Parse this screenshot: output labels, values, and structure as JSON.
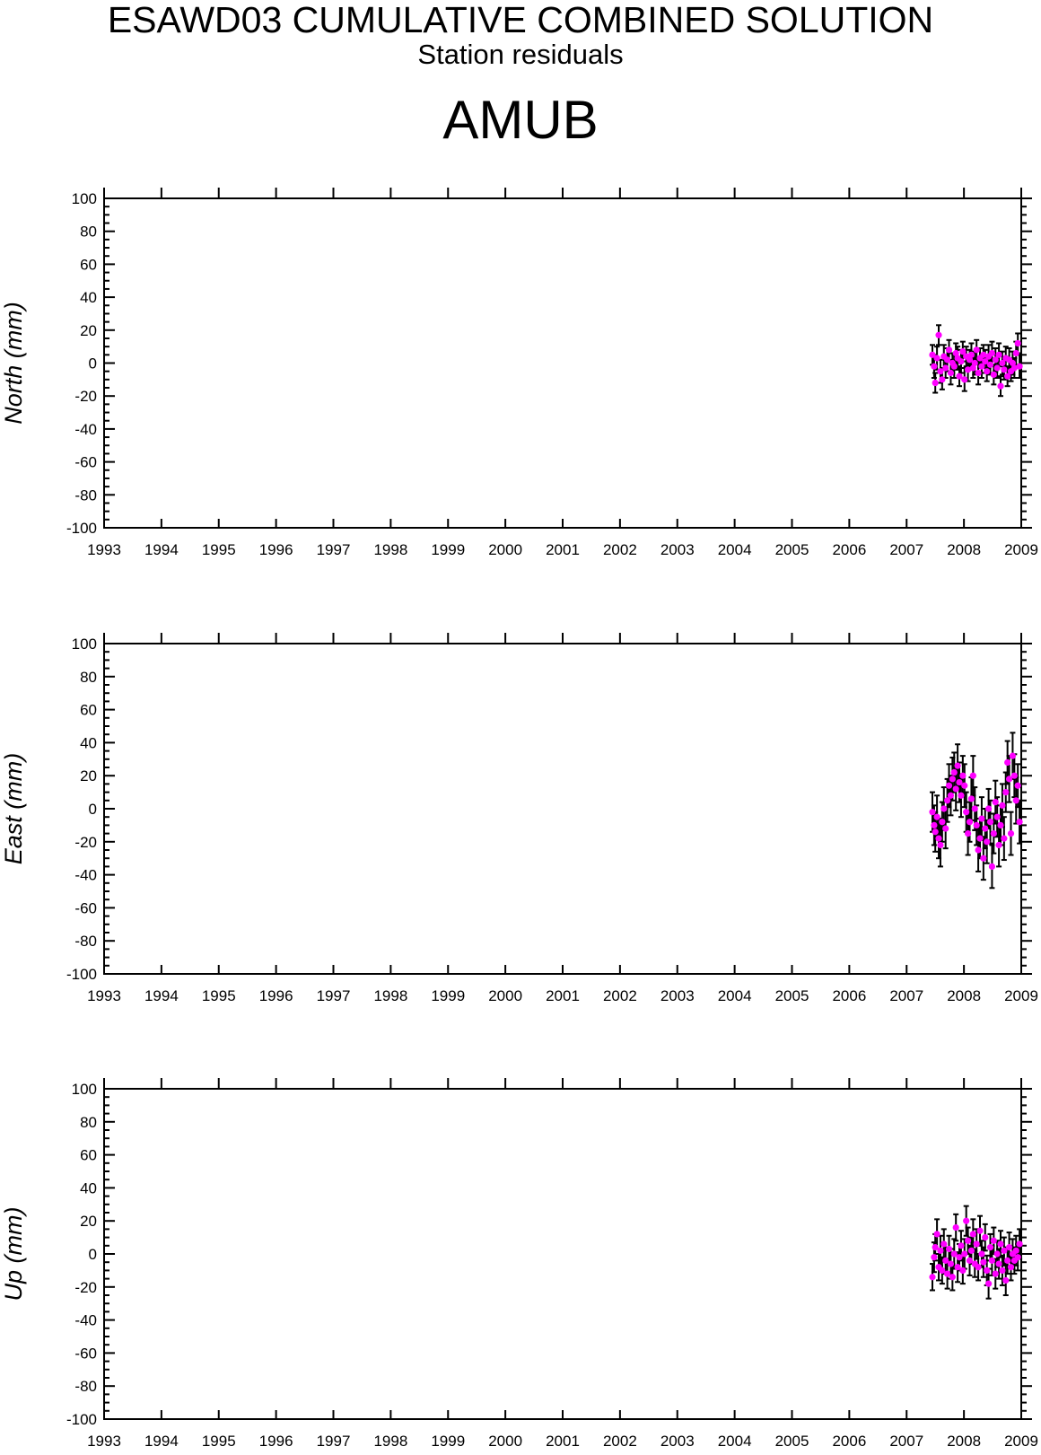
{
  "header": {
    "title": "ESAWD03 CUMULATIVE COMBINED SOLUTION",
    "subtitle": "Station residuals",
    "station": "AMUB"
  },
  "colors": {
    "point": "#ff00ff",
    "errorbar": "#000000",
    "axis": "#000000"
  },
  "chart_data": [
    {
      "type": "scatter",
      "ylabel": "North (mm)",
      "xlim": [
        1993,
        2009
      ],
      "ylim": [
        -100,
        100
      ],
      "xticks": [
        "1993",
        "1994",
        "1995",
        "1996",
        "1997",
        "1998",
        "1999",
        "2000",
        "2001",
        "2002",
        "2003",
        "2004",
        "2005",
        "2006",
        "2007",
        "2008",
        "2009"
      ],
      "yticks": [
        "100",
        "80",
        "60",
        "40",
        "20",
        "0",
        "-20",
        "-40",
        "-60",
        "-80",
        "-100"
      ],
      "grid": false,
      "points": [
        [
          2007.45,
          5,
          6
        ],
        [
          2007.48,
          -2,
          7
        ],
        [
          2007.5,
          -12,
          6
        ],
        [
          2007.53,
          3,
          7
        ],
        [
          2007.56,
          17,
          6
        ],
        [
          2007.59,
          -5,
          7
        ],
        [
          2007.62,
          -10,
          6
        ],
        [
          2007.65,
          4,
          7
        ],
        [
          2007.68,
          -3,
          6
        ],
        [
          2007.71,
          2,
          7
        ],
        [
          2007.74,
          8,
          6
        ],
        [
          2007.77,
          -6,
          7
        ],
        [
          2007.8,
          0,
          6
        ],
        [
          2007.83,
          -2,
          7
        ],
        [
          2007.86,
          6,
          6
        ],
        [
          2007.89,
          3,
          7
        ],
        [
          2007.92,
          -8,
          6
        ],
        [
          2007.95,
          1,
          7
        ],
        [
          2007.98,
          7,
          6
        ],
        [
          2008.01,
          -10,
          7
        ],
        [
          2008.04,
          4,
          6
        ],
        [
          2008.07,
          -4,
          7
        ],
        [
          2008.1,
          2,
          6
        ],
        [
          2008.13,
          5,
          7
        ],
        [
          2008.16,
          -3,
          6
        ],
        [
          2008.19,
          0,
          7
        ],
        [
          2008.22,
          8,
          6
        ],
        [
          2008.25,
          -6,
          7
        ],
        [
          2008.28,
          3,
          6
        ],
        [
          2008.31,
          -2,
          7
        ],
        [
          2008.34,
          5,
          6
        ],
        [
          2008.37,
          1,
          7
        ],
        [
          2008.4,
          -5,
          6
        ],
        [
          2008.43,
          4,
          7
        ],
        [
          2008.46,
          -1,
          6
        ],
        [
          2008.49,
          6,
          7
        ],
        [
          2008.52,
          -7,
          6
        ],
        [
          2008.55,
          2,
          7
        ],
        [
          2008.58,
          -3,
          6
        ],
        [
          2008.61,
          5,
          7
        ],
        [
          2008.64,
          -14,
          6
        ],
        [
          2008.67,
          0,
          7
        ],
        [
          2008.7,
          -4,
          6
        ],
        [
          2008.73,
          3,
          7
        ],
        [
          2008.76,
          -8,
          6
        ],
        [
          2008.79,
          2,
          7
        ],
        [
          2008.82,
          -5,
          6
        ],
        [
          2008.85,
          0,
          7
        ],
        [
          2008.88,
          -3,
          6
        ],
        [
          2008.91,
          6,
          7
        ],
        [
          2008.94,
          12,
          6
        ],
        [
          2008.97,
          -2,
          7
        ]
      ]
    },
    {
      "type": "scatter",
      "ylabel": "East (mm)",
      "xlim": [
        1993,
        2009
      ],
      "ylim": [
        -100,
        100
      ],
      "xticks": [
        "1993",
        "1994",
        "1995",
        "1996",
        "1997",
        "1998",
        "1999",
        "2000",
        "2001",
        "2002",
        "2003",
        "2004",
        "2005",
        "2006",
        "2007",
        "2008",
        "2009"
      ],
      "yticks": [
        "100",
        "80",
        "60",
        "40",
        "20",
        "0",
        "-20",
        "-40",
        "-60",
        "-80",
        "-100"
      ],
      "grid": false,
      "points": [
        [
          2007.45,
          -2,
          12
        ],
        [
          2007.48,
          -10,
          12
        ],
        [
          2007.5,
          -14,
          12
        ],
        [
          2007.53,
          -5,
          13
        ],
        [
          2007.56,
          -18,
          12
        ],
        [
          2007.59,
          -22,
          13
        ],
        [
          2007.62,
          -8,
          12
        ],
        [
          2007.65,
          0,
          13
        ],
        [
          2007.68,
          -12,
          12
        ],
        [
          2007.71,
          5,
          13
        ],
        [
          2007.74,
          14,
          13
        ],
        [
          2007.77,
          8,
          12
        ],
        [
          2007.8,
          18,
          13
        ],
        [
          2007.83,
          22,
          12
        ],
        [
          2007.86,
          12,
          13
        ],
        [
          2007.89,
          26,
          13
        ],
        [
          2007.92,
          16,
          12
        ],
        [
          2007.95,
          8,
          13
        ],
        [
          2007.98,
          20,
          12
        ],
        [
          2008.01,
          14,
          13
        ],
        [
          2008.04,
          -2,
          12
        ],
        [
          2008.07,
          -15,
          13
        ],
        [
          2008.1,
          -8,
          12
        ],
        [
          2008.13,
          6,
          13
        ],
        [
          2008.16,
          20,
          12
        ],
        [
          2008.19,
          0,
          13
        ],
        [
          2008.22,
          -10,
          12
        ],
        [
          2008.25,
          -25,
          13
        ],
        [
          2008.28,
          -18,
          12
        ],
        [
          2008.31,
          -6,
          13
        ],
        [
          2008.34,
          -30,
          13
        ],
        [
          2008.37,
          -12,
          12
        ],
        [
          2008.4,
          -20,
          13
        ],
        [
          2008.43,
          0,
          12
        ],
        [
          2008.46,
          -8,
          13
        ],
        [
          2008.49,
          -35,
          13
        ],
        [
          2008.52,
          -15,
          12
        ],
        [
          2008.55,
          4,
          13
        ],
        [
          2008.58,
          -5,
          12
        ],
        [
          2008.61,
          -22,
          13
        ],
        [
          2008.64,
          -10,
          12
        ],
        [
          2008.67,
          2,
          13
        ],
        [
          2008.7,
          -18,
          13
        ],
        [
          2008.73,
          10,
          12
        ],
        [
          2008.76,
          28,
          13
        ],
        [
          2008.79,
          18,
          14
        ],
        [
          2008.82,
          -15,
          13
        ],
        [
          2008.85,
          32,
          14
        ],
        [
          2008.88,
          20,
          13
        ],
        [
          2008.91,
          5,
          14
        ],
        [
          2008.94,
          14,
          13
        ],
        [
          2008.97,
          -8,
          13
        ]
      ]
    },
    {
      "type": "scatter",
      "ylabel": "Up (mm)",
      "xlim": [
        1993,
        2009
      ],
      "ylim": [
        -100,
        100
      ],
      "xticks": [
        "1993",
        "1994",
        "1995",
        "1996",
        "1997",
        "1998",
        "1999",
        "2000",
        "2001",
        "2002",
        "2003",
        "2004",
        "2005",
        "2006",
        "2007",
        "2008",
        "2009"
      ],
      "yticks": [
        "100",
        "80",
        "60",
        "40",
        "20",
        "0",
        "-20",
        "-40",
        "-60",
        "-80",
        "-100"
      ],
      "grid": false,
      "points": [
        [
          2007.45,
          -14,
          8
        ],
        [
          2007.48,
          -2,
          9
        ],
        [
          2007.5,
          4,
          8
        ],
        [
          2007.53,
          12,
          9
        ],
        [
          2007.56,
          -8,
          8
        ],
        [
          2007.59,
          2,
          9
        ],
        [
          2007.62,
          -10,
          8
        ],
        [
          2007.65,
          6,
          9
        ],
        [
          2007.68,
          -4,
          8
        ],
        [
          2007.71,
          -12,
          9
        ],
        [
          2007.74,
          3,
          8
        ],
        [
          2007.77,
          -6,
          9
        ],
        [
          2007.8,
          -14,
          8
        ],
        [
          2007.83,
          0,
          9
        ],
        [
          2007.86,
          16,
          8
        ],
        [
          2007.89,
          -8,
          9
        ],
        [
          2007.92,
          -2,
          8
        ],
        [
          2007.95,
          5,
          9
        ],
        [
          2007.98,
          -10,
          8
        ],
        [
          2008.01,
          0,
          9
        ],
        [
          2008.04,
          20,
          9
        ],
        [
          2008.07,
          8,
          8
        ],
        [
          2008.1,
          -4,
          9
        ],
        [
          2008.13,
          2,
          8
        ],
        [
          2008.16,
          12,
          9
        ],
        [
          2008.19,
          -6,
          8
        ],
        [
          2008.22,
          6,
          9
        ],
        [
          2008.25,
          -8,
          8
        ],
        [
          2008.28,
          14,
          9
        ],
        [
          2008.31,
          0,
          8
        ],
        [
          2008.34,
          -5,
          9
        ],
        [
          2008.37,
          10,
          8
        ],
        [
          2008.4,
          -10,
          9
        ],
        [
          2008.43,
          -18,
          9
        ],
        [
          2008.46,
          4,
          8
        ],
        [
          2008.49,
          -4,
          9
        ],
        [
          2008.52,
          8,
          8
        ],
        [
          2008.55,
          -12,
          9
        ],
        [
          2008.58,
          0,
          8
        ],
        [
          2008.61,
          -6,
          9
        ],
        [
          2008.64,
          6,
          8
        ],
        [
          2008.67,
          -10,
          9
        ],
        [
          2008.7,
          2,
          8
        ],
        [
          2008.73,
          -16,
          9
        ],
        [
          2008.76,
          -4,
          8
        ],
        [
          2008.79,
          4,
          9
        ],
        [
          2008.82,
          -8,
          8
        ],
        [
          2008.85,
          0,
          9
        ],
        [
          2008.88,
          -4,
          8
        ],
        [
          2008.91,
          2,
          9
        ],
        [
          2008.94,
          -2,
          8
        ],
        [
          2008.97,
          6,
          9
        ]
      ]
    }
  ]
}
